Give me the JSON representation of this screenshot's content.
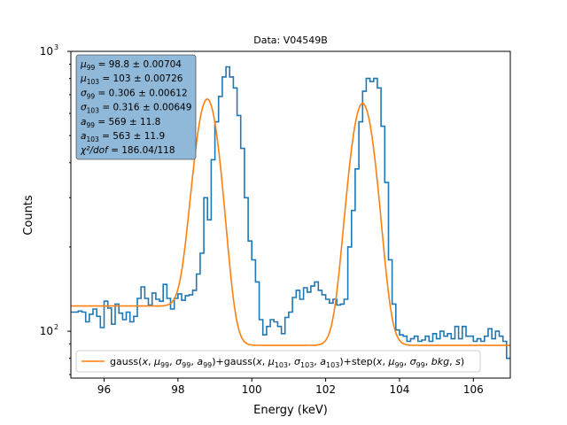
{
  "chart_data": {
    "type": "line",
    "title": "Data: V04549B",
    "xlabel": "Energy (keV)",
    "ylabel": "Counts",
    "xlim": [
      95.1,
      107.0
    ],
    "ylim": [
      68,
      1000
    ],
    "yscale": "log",
    "x_ticks": [
      {
        "value": 96,
        "label": "96"
      },
      {
        "value": 98,
        "label": "98"
      },
      {
        "value": 100,
        "label": "100"
      },
      {
        "value": 102,
        "label": "102"
      },
      {
        "value": 104,
        "label": "104"
      },
      {
        "value": 106,
        "label": "106"
      }
    ],
    "y_ticks": [
      {
        "value": 100,
        "label_base": "10",
        "label_exp": "2"
      },
      {
        "value": 1000,
        "label_base": "10",
        "label_exp": "3"
      }
    ],
    "histogram": {
      "color": "#1f77b4",
      "bin_width": 0.1,
      "bin_start": 95.1,
      "counts": [
        117,
        117,
        118,
        117,
        108,
        115,
        120,
        113,
        103,
        128,
        121,
        106,
        125,
        116,
        110,
        117,
        108,
        113,
        131,
        144,
        131,
        124,
        137,
        130,
        128,
        147,
        131,
        120,
        131,
        136,
        129,
        134,
        135,
        140,
        160,
        190,
        300,
        250,
        410,
        560,
        690,
        810,
        880,
        810,
        740,
        590,
        450,
        300,
        210,
        180,
        150,
        110,
        97,
        104,
        110,
        108,
        104,
        98,
        112,
        117,
        132,
        140,
        130,
        143,
        138,
        145,
        150,
        140,
        135,
        130,
        126,
        130,
        124,
        125,
        130,
        200,
        270,
        380,
        560,
        720,
        800,
        780,
        800,
        740,
        540,
        340,
        180,
        125,
        101,
        97,
        96,
        92,
        94,
        96,
        92,
        93,
        96,
        92,
        98,
        94,
        100,
        96,
        98,
        94,
        104,
        94,
        104,
        96,
        96,
        92,
        94,
        92,
        96,
        102,
        94,
        100,
        96,
        92,
        80
      ]
    },
    "series": [
      {
        "name": "gauss(x, μ99, σ99, a99)+gauss(x, μ103, σ103, a103)+step(x, μ99, σ99, bkg, s)",
        "color": "#ff7f0e",
        "model": {
          "mu1": 98.8,
          "sigma1": 0.306,
          "a1": 569,
          "mu2": 103,
          "sigma2": 0.316,
          "a2": 563,
          "bkg_low": 123,
          "bkg_high": 89
        }
      }
    ],
    "legend": {
      "placement": "lower center",
      "label_parts": [
        "gauss(",
        "x",
        ", ",
        "μ",
        "99",
        ", ",
        "σ",
        "99",
        ", ",
        "a",
        "99",
        ")+gauss(",
        "x",
        ", ",
        "μ",
        "103",
        ", ",
        "σ",
        "103",
        ", ",
        "a",
        "103",
        ")+step(",
        "x",
        ", ",
        "μ",
        "99",
        ", ",
        "σ",
        "99",
        ", ",
        "bkg",
        ", ",
        "s",
        ")"
      ]
    },
    "annotation": {
      "placement": "top-left",
      "background": "#8fb8d9",
      "lines": [
        {
          "sym": "μ",
          "sub": "99",
          "text": " = 98.8 ± 0.00704"
        },
        {
          "sym": "μ",
          "sub": "103",
          "text": " = 103 ± 0.00726"
        },
        {
          "sym": "σ",
          "sub": "99",
          "text": " = 0.306 ± 0.00612"
        },
        {
          "sym": "σ",
          "sub": "103",
          "text": " = 0.316 ± 0.00649"
        },
        {
          "sym": "a",
          "sub": "99",
          "text": " = 569 ± 11.8"
        },
        {
          "sym": "a",
          "sub": "103",
          "text": " = 563 ± 11.9"
        },
        {
          "sym": "χ²/dof",
          "sub": "",
          "text": " = 186.04/118"
        }
      ]
    }
  }
}
